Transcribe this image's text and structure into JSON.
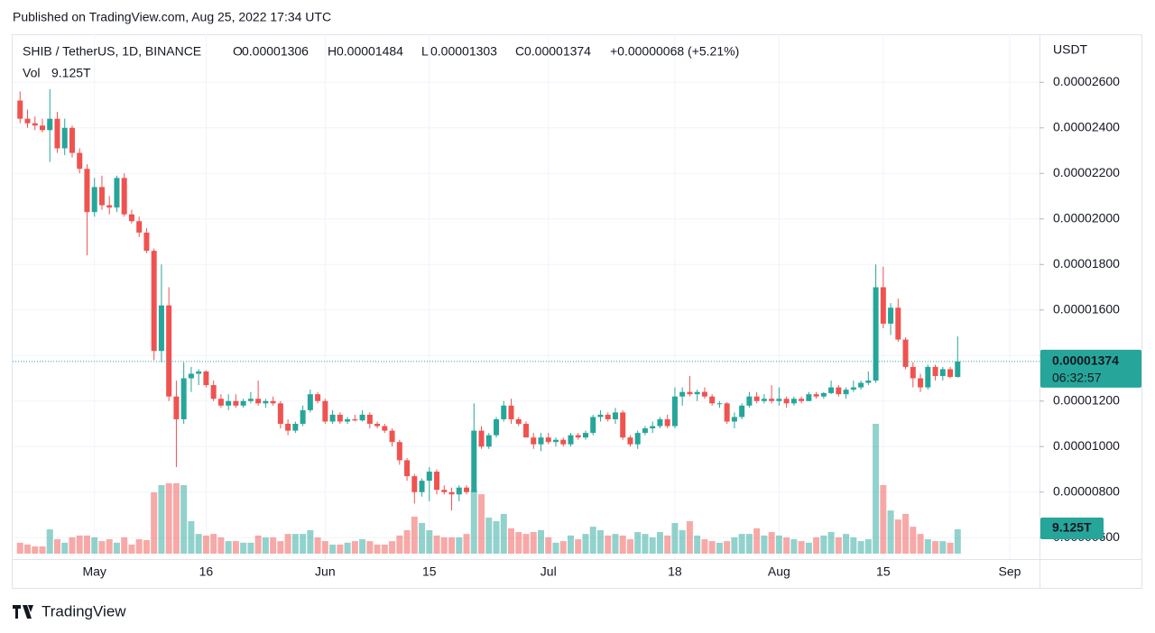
{
  "published": "Published on TradingView.com, Aug 25, 2022 17:34 UTC",
  "footer": "TradingView",
  "chart_data": {
    "type": "candlestick",
    "symbol": "SHIB / TetherUS, 1D, BINANCE",
    "currency": "USDT",
    "ohlc_names": [
      "O",
      "H",
      "L",
      "C"
    ],
    "ohlc_labels": [
      "0.00001306",
      "0.00001484",
      "0.00001303",
      "0.00001374"
    ],
    "change_label": "+0.00000068 (+5.21%)",
    "volume_name": "Vol",
    "volume_label": "9.125T",
    "last_price_label": "0.00001374",
    "countdown": "06:32:57",
    "color_up": "#26a69a",
    "color_down": "#ef5350",
    "grid": true,
    "xlim": [
      "2022-04-20",
      "2022-09-05"
    ],
    "xticks": [
      {
        "value": "2022-05-01",
        "label": "May"
      },
      {
        "value": "2022-05-16",
        "label": "16"
      },
      {
        "value": "2022-06-01",
        "label": "Jun"
      },
      {
        "value": "2022-06-15",
        "label": "15"
      },
      {
        "value": "2022-07-01",
        "label": "Jul"
      },
      {
        "value": "2022-07-18",
        "label": "18"
      },
      {
        "value": "2022-08-01",
        "label": "Aug"
      },
      {
        "value": "2022-08-15",
        "label": "15"
      },
      {
        "value": "2022-09-01",
        "label": "Sep"
      }
    ],
    "ylim": [
      5.06e-06,
      2.811e-05
    ],
    "yticks": [
      {
        "value": 2.6e-05,
        "label": "0.00002600"
      },
      {
        "value": 2.4e-05,
        "label": "0.00002400"
      },
      {
        "value": 2.2e-05,
        "label": "0.00002200"
      },
      {
        "value": 2e-05,
        "label": "0.00002000"
      },
      {
        "value": 1.8e-05,
        "label": "0.00001800"
      },
      {
        "value": 1.6e-05,
        "label": "0.00001600"
      },
      {
        "value": 1.4e-05,
        "label": "0.00001400"
      },
      {
        "value": 1.2e-05,
        "label": "0.00001200"
      },
      {
        "value": 1e-05,
        "label": "0.00001000"
      },
      {
        "value": 8e-06,
        "label": "0.00000800"
      },
      {
        "value": 6e-06,
        "label": "0.00000600"
      }
    ],
    "x": [
      "2022-04-21",
      "2022-04-22",
      "2022-04-23",
      "2022-04-24",
      "2022-04-25",
      "2022-04-26",
      "2022-04-27",
      "2022-04-28",
      "2022-04-29",
      "2022-04-30",
      "2022-05-01",
      "2022-05-02",
      "2022-05-03",
      "2022-05-04",
      "2022-05-05",
      "2022-05-06",
      "2022-05-07",
      "2022-05-08",
      "2022-05-09",
      "2022-05-10",
      "2022-05-11",
      "2022-05-12",
      "2022-05-13",
      "2022-05-14",
      "2022-05-15",
      "2022-05-16",
      "2022-05-17",
      "2022-05-18",
      "2022-05-19",
      "2022-05-20",
      "2022-05-21",
      "2022-05-22",
      "2022-05-23",
      "2022-05-24",
      "2022-05-25",
      "2022-05-26",
      "2022-05-27",
      "2022-05-28",
      "2022-05-29",
      "2022-05-30",
      "2022-05-31",
      "2022-06-01",
      "2022-06-02",
      "2022-06-03",
      "2022-06-04",
      "2022-06-05",
      "2022-06-06",
      "2022-06-07",
      "2022-06-08",
      "2022-06-09",
      "2022-06-10",
      "2022-06-11",
      "2022-06-12",
      "2022-06-13",
      "2022-06-14",
      "2022-06-15",
      "2022-06-16",
      "2022-06-17",
      "2022-06-18",
      "2022-06-19",
      "2022-06-20",
      "2022-06-21",
      "2022-06-22",
      "2022-06-23",
      "2022-06-24",
      "2022-06-25",
      "2022-06-26",
      "2022-06-27",
      "2022-06-28",
      "2022-06-29",
      "2022-06-30",
      "2022-07-01",
      "2022-07-02",
      "2022-07-03",
      "2022-07-04",
      "2022-07-05",
      "2022-07-06",
      "2022-07-07",
      "2022-07-08",
      "2022-07-09",
      "2022-07-10",
      "2022-07-11",
      "2022-07-12",
      "2022-07-13",
      "2022-07-14",
      "2022-07-15",
      "2022-07-16",
      "2022-07-17",
      "2022-07-18",
      "2022-07-19",
      "2022-07-20",
      "2022-07-21",
      "2022-07-22",
      "2022-07-23",
      "2022-07-24",
      "2022-07-25",
      "2022-07-26",
      "2022-07-27",
      "2022-07-28",
      "2022-07-29",
      "2022-07-30",
      "2022-07-31",
      "2022-08-01",
      "2022-08-02",
      "2022-08-03",
      "2022-08-04",
      "2022-08-05",
      "2022-08-06",
      "2022-08-07",
      "2022-08-08",
      "2022-08-09",
      "2022-08-10",
      "2022-08-11",
      "2022-08-12",
      "2022-08-13",
      "2022-08-14",
      "2022-08-15",
      "2022-08-16",
      "2022-08-17",
      "2022-08-18",
      "2022-08-19",
      "2022-08-20",
      "2022-08-21",
      "2022-08-22",
      "2022-08-23",
      "2022-08-24",
      "2022-08-25"
    ],
    "ohlc": [
      [
        2.52e-05,
        2.56e-05,
        2.42e-05,
        2.44e-05
      ],
      [
        2.44e-05,
        2.48e-05,
        2.4e-05,
        2.42e-05
      ],
      [
        2.42e-05,
        2.45e-05,
        2.39e-05,
        2.41e-05
      ],
      [
        2.41e-05,
        2.44e-05,
        2.38e-05,
        2.39e-05
      ],
      [
        2.39e-05,
        2.57e-05,
        2.25e-05,
        2.44e-05
      ],
      [
        2.44e-05,
        2.47e-05,
        2.29e-05,
        2.31e-05
      ],
      [
        2.31e-05,
        2.44e-05,
        2.28e-05,
        2.4e-05
      ],
      [
        2.4e-05,
        2.41e-05,
        2.27e-05,
        2.29e-05
      ],
      [
        2.29e-05,
        2.31e-05,
        2.2e-05,
        2.22e-05
      ],
      [
        2.22e-05,
        2.24e-05,
        1.84e-05,
        2.03e-05
      ],
      [
        2.03e-05,
        2.18e-05,
        2.01e-05,
        2.14e-05
      ],
      [
        2.14e-05,
        2.19e-05,
        2.04e-05,
        2.06e-05
      ],
      [
        2.06e-05,
        2.1e-05,
        2.02e-05,
        2.05e-05
      ],
      [
        2.05e-05,
        2.19e-05,
        2.03e-05,
        2.18e-05
      ],
      [
        2.18e-05,
        2.2e-05,
        2.01e-05,
        2.02e-05
      ],
      [
        2.02e-05,
        2.04e-05,
        1.98e-05,
        1.99e-05
      ],
      [
        1.99e-05,
        2.01e-05,
        1.92e-05,
        1.94e-05
      ],
      [
        1.94e-05,
        1.96e-05,
        1.85e-05,
        1.86e-05
      ],
      [
        1.86e-05,
        1.87e-05,
        1.38e-05,
        1.42e-05
      ],
      [
        1.42e-05,
        1.8e-05,
        1.37e-05,
        1.62e-05
      ],
      [
        1.62e-05,
        1.7e-05,
        1.2e-05,
        1.22e-05
      ],
      [
        1.22e-05,
        1.29e-05,
        9.1e-06,
        1.12e-05
      ],
      [
        1.12e-05,
        1.37e-05,
        1.1e-05,
        1.3e-05
      ],
      [
        1.3e-05,
        1.35e-05,
        1.24e-05,
        1.32e-05
      ],
      [
        1.32e-05,
        1.34e-05,
        1.27e-05,
        1.33e-05
      ],
      [
        1.33e-05,
        1.335e-05,
        1.26e-05,
        1.27e-05
      ],
      [
        1.27e-05,
        1.29e-05,
        1.2e-05,
        1.21e-05
      ],
      [
        1.21e-05,
        1.23e-05,
        1.17e-05,
        1.18e-05
      ],
      [
        1.18e-05,
        1.23e-05,
        1.16e-05,
        1.2e-05
      ],
      [
        1.2e-05,
        1.23e-05,
        1.17e-05,
        1.18e-05
      ],
      [
        1.18e-05,
        1.21e-05,
        1.17e-05,
        1.2e-05
      ],
      [
        1.2e-05,
        1.24e-05,
        1.19e-05,
        1.21e-05
      ],
      [
        1.21e-05,
        1.29e-05,
        1.18e-05,
        1.19e-05
      ],
      [
        1.19e-05,
        1.21e-05,
        1.17e-05,
        1.2e-05
      ],
      [
        1.2e-05,
        1.22e-05,
        1.18e-05,
        1.19e-05
      ],
      [
        1.19e-05,
        1.2e-05,
        1.08e-05,
        1.1e-05
      ],
      [
        1.1e-05,
        1.12e-05,
        1.05e-05,
        1.07e-05
      ],
      [
        1.07e-05,
        1.11e-05,
        1.06e-05,
        1.1e-05
      ],
      [
        1.1e-05,
        1.18e-05,
        1.09e-05,
        1.16e-05
      ],
      [
        1.16e-05,
        1.25e-05,
        1.15e-05,
        1.23e-05
      ],
      [
        1.23e-05,
        1.24e-05,
        1.19e-05,
        1.2e-05
      ],
      [
        1.2e-05,
        1.21e-05,
        1.1e-05,
        1.11e-05
      ],
      [
        1.11e-05,
        1.16e-05,
        1.1e-05,
        1.14e-05
      ],
      [
        1.14e-05,
        1.15e-05,
        1.1e-05,
        1.11e-05
      ],
      [
        1.11e-05,
        1.13e-05,
        1.1e-05,
        1.12e-05
      ],
      [
        1.12e-05,
        1.14e-05,
        1.11e-05,
        1.115e-05
      ],
      [
        1.115e-05,
        1.16e-05,
        1.11e-05,
        1.14e-05
      ],
      [
        1.14e-05,
        1.15e-05,
        1.08e-05,
        1.1e-05
      ],
      [
        1.1e-05,
        1.11e-05,
        1.08e-05,
        1.09e-05
      ],
      [
        1.09e-05,
        1.1e-05,
        1.06e-05,
        1.07e-05
      ],
      [
        1.07e-05,
        1.08e-05,
        1e-05,
        1.02e-05
      ],
      [
        1.02e-05,
        1.03e-05,
        9.2e-06,
        9.4e-06
      ],
      [
        9.4e-06,
        9.5e-06,
        8.5e-06,
        8.7e-06
      ],
      [
        8.7e-06,
        8.8e-06,
        7.5e-06,
        8e-06
      ],
      [
        8e-06,
        8.6e-06,
        7.8e-06,
        8.5e-06
      ],
      [
        8.5e-06,
        9.1e-06,
        7.6e-06,
        8.9e-06
      ],
      [
        8.9e-06,
        9e-06,
        7.9e-06,
        8.1e-06
      ],
      [
        8.1e-06,
        8.3e-06,
        7.9e-06,
        8e-06
      ],
      [
        8e-06,
        8.2e-06,
        7.2e-06,
        7.9e-06
      ],
      [
        7.9e-06,
        8.3e-06,
        7.6e-06,
        8.2e-06
      ],
      [
        8.2e-06,
        8.3e-06,
        7.9e-06,
        8e-06
      ],
      [
        8e-06,
        1.19e-05,
        8e-06,
        1.07e-05
      ],
      [
        1.07e-05,
        1.09e-05,
        9.9e-06,
        1e-05
      ],
      [
        1e-05,
        1.06e-05,
        9.9e-06,
        1.05e-05
      ],
      [
        1.05e-05,
        1.13e-05,
        1.04e-05,
        1.12e-05
      ],
      [
        1.12e-05,
        1.2e-05,
        1.11e-05,
        1.18e-05
      ],
      [
        1.18e-05,
        1.21e-05,
        1.1e-05,
        1.12e-05
      ],
      [
        1.12e-05,
        1.13e-05,
        1.09e-05,
        1.1e-05
      ],
      [
        1.1e-05,
        1.11e-05,
        1.04e-05,
        1.04e-05
      ],
      [
        1.04e-05,
        1.06e-05,
        9.9e-06,
        1.01e-05
      ],
      [
        1.01e-05,
        1.06e-05,
        9.8e-06,
        1.04e-05
      ],
      [
        1.04e-05,
        1.06e-05,
        1.01e-05,
        1.02e-05
      ],
      [
        1.02e-05,
        1.04e-05,
        1e-05,
        1.03e-05
      ],
      [
        1.03e-05,
        1.04e-05,
        1e-05,
        1.01e-05
      ],
      [
        1.01e-05,
        1.06e-05,
        1e-05,
        1.05e-05
      ],
      [
        1.05e-05,
        1.06e-05,
        1.03e-05,
        1.04e-05
      ],
      [
        1.04e-05,
        1.07e-05,
        1.03e-05,
        1.06e-05
      ],
      [
        1.06e-05,
        1.14e-05,
        1.05e-05,
        1.13e-05
      ],
      [
        1.13e-05,
        1.16e-05,
        1.11e-05,
        1.14e-05
      ],
      [
        1.14e-05,
        1.15e-05,
        1.11e-05,
        1.12e-05
      ],
      [
        1.12e-05,
        1.17e-05,
        1.1e-05,
        1.15e-05
      ],
      [
        1.15e-05,
        1.16e-05,
        1.03e-05,
        1.04e-05
      ],
      [
        1.04e-05,
        1.05e-05,
        1e-05,
        1.01e-05
      ],
      [
        1.01e-05,
        1.07e-05,
        9.9e-06,
        1.06e-05
      ],
      [
        1.06e-05,
        1.09e-05,
        1.05e-05,
        1.08e-05
      ],
      [
        1.08e-05,
        1.11e-05,
        1.06e-05,
        1.09e-05
      ],
      [
        1.09e-05,
        1.13e-05,
        1.08e-05,
        1.12e-05
      ],
      [
        1.12e-05,
        1.14e-05,
        1.08e-05,
        1.09e-05
      ],
      [
        1.09e-05,
        1.26e-05,
        1.08e-05,
        1.22e-05
      ],
      [
        1.22e-05,
        1.26e-05,
        1.18e-05,
        1.24e-05
      ],
      [
        1.24e-05,
        1.31e-05,
        1.22e-05,
        1.23e-05
      ],
      [
        1.23e-05,
        1.25e-05,
        1.2e-05,
        1.24e-05
      ],
      [
        1.24e-05,
        1.26e-05,
        1.21e-05,
        1.22e-05
      ],
      [
        1.22e-05,
        1.23e-05,
        1.18e-05,
        1.19e-05
      ],
      [
        1.19e-05,
        1.2e-05,
        1.17e-05,
        1.19e-05
      ],
      [
        1.19e-05,
        1.195e-05,
        1.1e-05,
        1.11e-05
      ],
      [
        1.11e-05,
        1.15e-05,
        1.08e-05,
        1.13e-05
      ],
      [
        1.13e-05,
        1.19e-05,
        1.12e-05,
        1.18e-05
      ],
      [
        1.18e-05,
        1.24e-05,
        1.17e-05,
        1.22e-05
      ],
      [
        1.22e-05,
        1.24e-05,
        1.19e-05,
        1.2e-05
      ],
      [
        1.2e-05,
        1.23e-05,
        1.19e-05,
        1.21e-05
      ],
      [
        1.21e-05,
        1.27e-05,
        1.19e-05,
        1.2e-05
      ],
      [
        1.2e-05,
        1.26e-05,
        1.18e-05,
        1.21e-05
      ],
      [
        1.21e-05,
        1.22e-05,
        1.17e-05,
        1.19e-05
      ],
      [
        1.19e-05,
        1.22e-05,
        1.18e-05,
        1.21e-05
      ],
      [
        1.21e-05,
        1.22e-05,
        1.19e-05,
        1.2e-05
      ],
      [
        1.2e-05,
        1.24e-05,
        1.2e-05,
        1.23e-05
      ],
      [
        1.23e-05,
        1.24e-05,
        1.21e-05,
        1.22e-05
      ],
      [
        1.22e-05,
        1.24e-05,
        1.21e-05,
        1.235e-05
      ],
      [
        1.235e-05,
        1.29e-05,
        1.23e-05,
        1.26e-05
      ],
      [
        1.26e-05,
        1.27e-05,
        1.22e-05,
        1.23e-05
      ],
      [
        1.23e-05,
        1.26e-05,
        1.21e-05,
        1.25e-05
      ],
      [
        1.25e-05,
        1.29e-05,
        1.24e-05,
        1.26e-05
      ],
      [
        1.26e-05,
        1.29e-05,
        1.25e-05,
        1.28e-05
      ],
      [
        1.28e-05,
        1.33e-05,
        1.27e-05,
        1.29e-05
      ],
      [
        1.29e-05,
        1.8e-05,
        1.28e-05,
        1.7e-05
      ],
      [
        1.7e-05,
        1.79e-05,
        1.52e-05,
        1.54e-05
      ],
      [
        1.54e-05,
        1.63e-05,
        1.49e-05,
        1.61e-05
      ],
      [
        1.61e-05,
        1.65e-05,
        1.46e-05,
        1.47e-05
      ],
      [
        1.47e-05,
        1.48e-05,
        1.34e-05,
        1.35e-05
      ],
      [
        1.35e-05,
        1.37e-05,
        1.26e-05,
        1.3e-05
      ],
      [
        1.3e-05,
        1.32e-05,
        1.24e-05,
        1.26e-05
      ],
      [
        1.26e-05,
        1.36e-05,
        1.25e-05,
        1.35e-05
      ],
      [
        1.35e-05,
        1.36e-05,
        1.29e-05,
        1.31e-05
      ],
      [
        1.31e-05,
        1.35e-05,
        1.29e-05,
        1.34e-05
      ],
      [
        1.34e-05,
        1.35e-05,
        1.3e-05,
        1.306e-05
      ],
      [
        1.306e-05,
        1.484e-05,
        1.303e-05,
        1.374e-05
      ]
    ],
    "volume": [
      4.1,
      3.4,
      2.7,
      2.7,
      9.1,
      5.4,
      4.1,
      6.1,
      6.8,
      6.8,
      6.1,
      4.7,
      5.4,
      4.1,
      6.1,
      3.4,
      5.4,
      5.1,
      23,
      25.7,
      26.4,
      26.4,
      25.7,
      12.2,
      7.4,
      6.8,
      7.4,
      6.1,
      4.7,
      4.7,
      4.1,
      4.1,
      6.8,
      6.1,
      6.1,
      4.7,
      7.4,
      7.4,
      7.4,
      8.8,
      6.1,
      4.7,
      3.4,
      3.4,
      4.1,
      4.7,
      5.4,
      4.7,
      3.4,
      3.4,
      4.7,
      6.8,
      8.8,
      13.9,
      11.5,
      8.8,
      6.8,
      6.1,
      6.1,
      6.1,
      7.4,
      24,
      22.3,
      13.5,
      12.2,
      14.9,
      9.5,
      8.1,
      7.4,
      8.1,
      8.8,
      6.1,
      4.1,
      4.7,
      6.8,
      5.4,
      7.4,
      10.1,
      8.8,
      6.8,
      7.4,
      6.8,
      5.4,
      8.1,
      7.4,
      6.1,
      8.1,
      6.8,
      11.5,
      8.8,
      12.2,
      6.8,
      5.4,
      4.7,
      4.1,
      4.7,
      6.1,
      7.4,
      7.4,
      9.5,
      6.8,
      8.1,
      6.8,
      6.1,
      5.4,
      4.7,
      4.1,
      6.1,
      6.8,
      8.1,
      6.1,
      7.4,
      6.1,
      4.7,
      5.4,
      48.7,
      25.7,
      16.2,
      12.8,
      14.9,
      10.1,
      7.4,
      5.4,
      4.7,
      4.7,
      4.1,
      9.125
    ]
  }
}
